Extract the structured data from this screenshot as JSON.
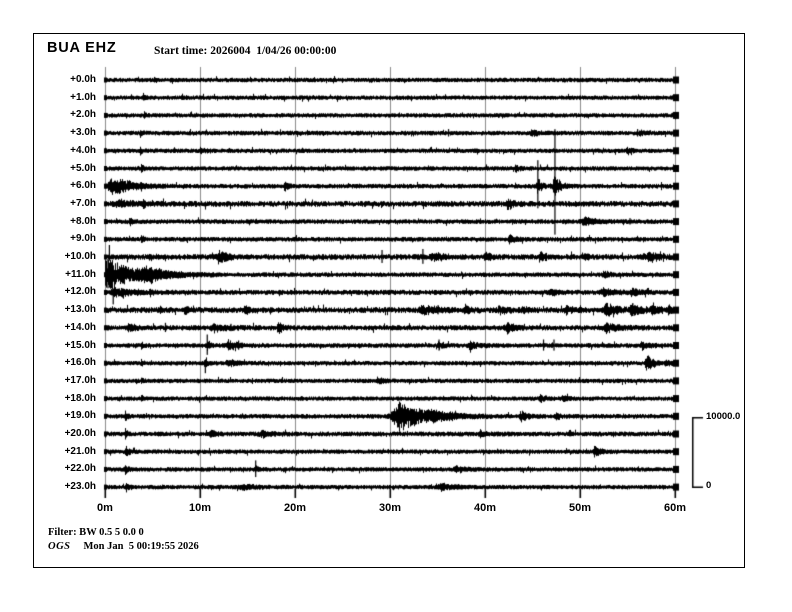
{
  "header": {
    "station": "BUA EHZ",
    "start_time": "Start time: 2026004  1/04/26 00:00:00"
  },
  "footer": {
    "filter_line": "Filter: BW 0.5 5 0.0 0",
    "agency": "OGS",
    "generated": "Mon Jan  5 00:19:55 2026"
  },
  "scale_bar": {
    "top_label": "10000.0",
    "bottom_label": "0"
  },
  "chart_data": {
    "type": "line",
    "subtype": "helicorder-seismogram",
    "title": "BUA EHZ",
    "start_label": "2026004 1/04/26 00:00:00",
    "x_tick_labels": [
      "0m",
      "10m",
      "20m",
      "30m",
      "40m",
      "50m",
      "60m"
    ],
    "x_range_minutes": [
      0,
      60
    ],
    "minutes_per_row": 60,
    "amplitude_counts_range": [
      0,
      10000
    ],
    "grid": "vertical lines every 10 minutes",
    "legend": "none",
    "event_format": [
      "type b=burst p=pulse s=spike su=spike-up sd=spike-down",
      "time_minutes",
      "amplitude_px",
      "duration_minutes"
    ],
    "rows": [
      {
        "label": "+0.0h",
        "noise": 1.2,
        "events": [
          [
            "p",
            5.2,
            3,
            0.2
          ]
        ]
      },
      {
        "label": "+1.0h",
        "noise": 1.2,
        "events": [
          [
            "p",
            4.0,
            3,
            0.2
          ]
        ]
      },
      {
        "label": "+2.0h",
        "noise": 1.2,
        "events": [
          [
            "p",
            4.1,
            3,
            0.2
          ]
        ]
      },
      {
        "label": "+3.0h",
        "noise": 1.3,
        "events": [
          [
            "p",
            3.7,
            3,
            0.2
          ],
          [
            "s",
            36.1,
            4,
            0
          ],
          [
            "b",
            44.9,
            3.5,
            0.5
          ],
          [
            "s",
            56.0,
            4,
            0
          ],
          [
            "b",
            56.3,
            3,
            0.4
          ]
        ]
      },
      {
        "label": "+4.0h",
        "noise": 1.2,
        "events": [
          [
            "p",
            3.7,
            3,
            0.2
          ],
          [
            "b",
            10.0,
            2.5,
            0.4
          ],
          [
            "b",
            55.0,
            3,
            0.5
          ]
        ]
      },
      {
        "label": "+5.0h",
        "noise": 1.2,
        "events": [
          [
            "p",
            3.8,
            3.5,
            0.2
          ],
          [
            "b",
            43.2,
            3,
            0.4
          ]
        ]
      },
      {
        "label": "+6.0h",
        "noise": 1.3,
        "events": [
          [
            "b",
            0.9,
            8.5,
            1.8
          ],
          [
            "p",
            3.8,
            3,
            0.2
          ],
          [
            "b",
            18.9,
            4,
            0.3
          ],
          [
            "s",
            45.5,
            26,
            0
          ],
          [
            "b",
            45.5,
            7,
            0.5
          ],
          [
            "s",
            47.3,
            57,
            0
          ],
          [
            "b",
            47.3,
            10,
            0.6
          ]
        ]
      },
      {
        "label": "+7.0h",
        "noise": 1.9,
        "events": [
          [
            "b",
            1.5,
            3,
            1.5
          ],
          [
            "p",
            4.0,
            3,
            0.2
          ],
          [
            "b",
            42.4,
            5,
            0.5
          ]
        ]
      },
      {
        "label": "+8.0h",
        "noise": 1.3,
        "events": [
          [
            "p",
            2.6,
            4,
            0.25
          ],
          [
            "b",
            50.5,
            3,
            1.3
          ],
          [
            "s",
            55.2,
            3.5,
            0
          ]
        ]
      },
      {
        "label": "+9.0h",
        "noise": 1.3,
        "events": [
          [
            "p",
            3.8,
            3.5,
            0.2
          ],
          [
            "b",
            42.6,
            4.5,
            0.5
          ]
        ]
      },
      {
        "label": "+10.0h",
        "noise": 1.8,
        "events": [
          [
            "su",
            0.4,
            12,
            0
          ],
          [
            "p",
            4.7,
            4,
            0.25
          ],
          [
            "b",
            12.0,
            6,
            0.7
          ],
          [
            "s",
            29.1,
            7,
            0
          ],
          [
            "s",
            33.4,
            8,
            0
          ],
          [
            "b",
            34.6,
            4,
            1.0
          ],
          [
            "b",
            40.0,
            4,
            0.6
          ],
          [
            "b",
            45.9,
            5,
            0.5
          ],
          [
            "b",
            50.3,
            3,
            0.4
          ],
          [
            "b",
            57.3,
            5,
            0.8
          ]
        ]
      },
      {
        "label": "+11.0h",
        "noise": 1.3,
        "events": [
          [
            "s",
            0.25,
            16,
            0
          ],
          [
            "b",
            0.2,
            16,
            2.8
          ],
          [
            "b",
            4.5,
            5,
            2.0
          ],
          [
            "b",
            52.5,
            4,
            0.5
          ]
        ]
      },
      {
        "label": "+12.0h",
        "noise": 1.5,
        "events": [
          [
            "sd",
            0.8,
            12,
            0
          ],
          [
            "b",
            1.2,
            4,
            1.8
          ],
          [
            "p",
            4.7,
            3,
            0.2
          ],
          [
            "b",
            47.0,
            2.5,
            0.8
          ],
          [
            "b",
            52.5,
            3,
            1.2
          ],
          [
            "b",
            55.5,
            3,
            0.8
          ]
        ]
      },
      {
        "label": "+13.0h",
        "noise": 1.9,
        "events": [
          [
            "p",
            5.8,
            3,
            0.2
          ],
          [
            "b",
            8.4,
            3,
            0.4
          ],
          [
            "b",
            14.7,
            3.5,
            0.4
          ],
          [
            "b",
            33.5,
            4,
            1.3
          ],
          [
            "s",
            35.0,
            5,
            0
          ],
          [
            "b",
            37.9,
            4,
            0.5
          ],
          [
            "b",
            41.5,
            3,
            0.8
          ],
          [
            "b",
            44.0,
            3,
            0.4
          ],
          [
            "s",
            48.6,
            5,
            0
          ],
          [
            "b",
            48.6,
            3,
            0.7
          ],
          [
            "b",
            52.8,
            6,
            1.0
          ],
          [
            "s",
            55.5,
            7,
            0
          ],
          [
            "b",
            55.5,
            5,
            1.0
          ],
          [
            "b",
            57.6,
            4,
            0.5
          ],
          [
            "b",
            59.3,
            4,
            0.4
          ]
        ]
      },
      {
        "label": "+14.0h",
        "noise": 1.6,
        "events": [
          [
            "b",
            2.5,
            3,
            0.8
          ],
          [
            "s",
            6.3,
            5,
            0
          ],
          [
            "b",
            11.5,
            4,
            1.0
          ],
          [
            "s",
            13.2,
            4,
            0
          ],
          [
            "b",
            18.2,
            6,
            0.4
          ],
          [
            "b",
            42.3,
            5,
            0.7
          ],
          [
            "b",
            52.8,
            4,
            1.3
          ]
        ]
      },
      {
        "label": "+15.0h",
        "noise": 1.3,
        "events": [
          [
            "p",
            3.8,
            3,
            0.2
          ],
          [
            "s",
            10.7,
            11,
            0
          ],
          [
            "b",
            10.7,
            4,
            0.3
          ],
          [
            "b",
            13.0,
            5,
            0.7
          ],
          [
            "s",
            14.0,
            5,
            0
          ],
          [
            "s",
            35.1,
            6,
            0
          ],
          [
            "b",
            35.1,
            4,
            0.4
          ],
          [
            "b",
            38.4,
            4,
            0.7
          ],
          [
            "s",
            46.1,
            6,
            0
          ],
          [
            "s",
            47.2,
            6,
            0
          ],
          [
            "b",
            56.5,
            3,
            0.8
          ]
        ]
      },
      {
        "label": "+16.0h",
        "noise": 1.2,
        "events": [
          [
            "p",
            3.8,
            3,
            0.2
          ],
          [
            "sd",
            10.5,
            10,
            0
          ],
          [
            "b",
            10.5,
            4,
            0.3
          ],
          [
            "b",
            13.0,
            3.5,
            0.7
          ],
          [
            "b",
            57.0,
            8,
            0.6
          ],
          [
            "b",
            59.0,
            3,
            0.4
          ]
        ]
      },
      {
        "label": "+17.0h",
        "noise": 1.2,
        "events": [
          [
            "p",
            3.8,
            3,
            0.2
          ],
          [
            "b",
            28.7,
            3.5,
            0.5
          ]
        ]
      },
      {
        "label": "+18.0h",
        "noise": 1.2,
        "events": [
          [
            "p",
            3.8,
            3,
            0.2
          ],
          [
            "b",
            45.8,
            3,
            0.5
          ],
          [
            "b",
            48.2,
            3,
            0.4
          ]
        ]
      },
      {
        "label": "+19.0h",
        "noise": 1.3,
        "events": [
          [
            "p",
            2.1,
            4,
            0.25
          ],
          [
            "b",
            31.0,
            15,
            2.4
          ],
          [
            "b",
            34.5,
            4,
            1.8
          ],
          [
            "b",
            43.8,
            4.5,
            0.6
          ],
          [
            "b",
            47.5,
            3,
            0.4
          ]
        ]
      },
      {
        "label": "+20.0h",
        "noise": 1.4,
        "events": [
          [
            "p",
            2.1,
            4,
            0.25
          ],
          [
            "b",
            11.1,
            3,
            0.4
          ],
          [
            "b",
            16.5,
            3,
            1.0
          ],
          [
            "b",
            39.5,
            3,
            0.6
          ]
        ]
      },
      {
        "label": "+21.0h",
        "noise": 1.2,
        "events": [
          [
            "p",
            2.2,
            5,
            0.3
          ],
          [
            "b",
            51.5,
            4.5,
            0.5
          ]
        ]
      },
      {
        "label": "+22.0h",
        "noise": 1.2,
        "events": [
          [
            "p",
            2.1,
            4.5,
            0.3
          ],
          [
            "s",
            15.8,
            9,
            0
          ],
          [
            "b",
            15.8,
            3,
            0.3
          ],
          [
            "b",
            37.0,
            2.5,
            0.9
          ]
        ]
      },
      {
        "label": "+23.0h",
        "noise": 1.2,
        "events": [
          [
            "p",
            2.2,
            4.5,
            0.3
          ],
          [
            "b",
            14.5,
            2.5,
            1.2
          ],
          [
            "b",
            35.5,
            3,
            1.3
          ]
        ]
      }
    ]
  }
}
